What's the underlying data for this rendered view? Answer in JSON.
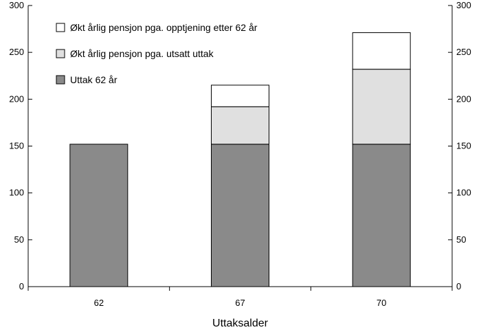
{
  "chart_data": {
    "type": "bar",
    "stacked": true,
    "categories": [
      "62",
      "67",
      "70"
    ],
    "series": [
      {
        "name": "Uttak 62 år",
        "values": [
          152,
          152,
          152
        ],
        "color": "#8a8a8a"
      },
      {
        "name": "Økt årlig pensjon pga. utsatt uttak",
        "values": [
          0,
          40,
          80
        ],
        "color": "#e0e0e0"
      },
      {
        "name": "Økt årlig pensjon pga. opptjening etter 62 år",
        "values": [
          0,
          23,
          39
        ],
        "color": "#ffffff"
      }
    ],
    "legend_order": [
      2,
      1,
      0
    ],
    "xlabel": "Uttaksalder",
    "ylabel": "",
    "ylim": [
      0,
      300
    ],
    "yticks": [
      0,
      50,
      100,
      150,
      200,
      250,
      300
    ],
    "y_axis_right": true,
    "grid": false,
    "legend_position": "top-left"
  }
}
